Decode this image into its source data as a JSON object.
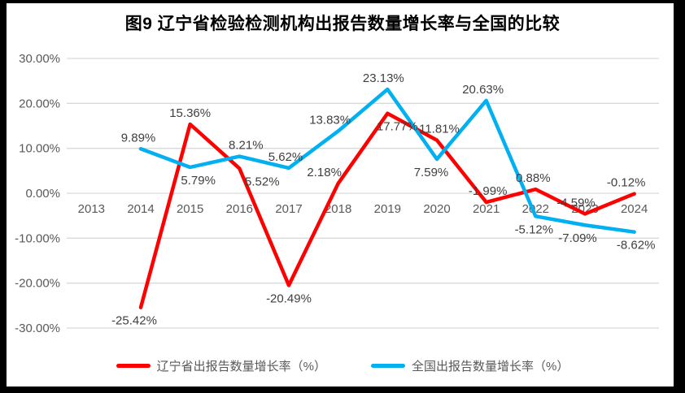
{
  "chart_data": {
    "type": "line",
    "title": "图9  辽宁省检验检测机构出报告数量增长率与全国的比较",
    "categories": [
      "2013",
      "2014",
      "2015",
      "2016",
      "2017",
      "2018",
      "2019",
      "2020",
      "2021",
      "2022",
      "2023",
      "2024"
    ],
    "series": [
      {
        "name": "辽宁省出报告数量增长率（%）",
        "color": "#FF0000",
        "values": [
          null,
          -25.42,
          15.36,
          5.52,
          -20.49,
          2.18,
          17.77,
          11.81,
          -1.99,
          0.88,
          -4.59,
          -0.12
        ],
        "label_side": [
          null,
          "below",
          "above",
          "below",
          "below",
          "above",
          "below",
          "above",
          "above",
          "above",
          "above",
          "above"
        ],
        "label_dx": [
          0,
          -8,
          0,
          28,
          0,
          -17,
          12,
          3,
          2,
          -3,
          -11,
          -10
        ]
      },
      {
        "name": "全国出报告数量增长率（%）",
        "color": "#00B0F0",
        "values": [
          null,
          9.89,
          5.79,
          8.21,
          5.62,
          13.83,
          23.13,
          7.59,
          20.63,
          -5.12,
          -7.09,
          -8.62
        ],
        "label_side": [
          null,
          "above",
          "below",
          "above",
          "above",
          "above",
          "above",
          "below",
          "above",
          "below",
          "below",
          "below"
        ],
        "label_dx": [
          0,
          -3,
          10,
          8,
          -4,
          -10,
          -5,
          -7,
          -4,
          -2,
          -9,
          2
        ]
      }
    ],
    "ylim": [
      -30,
      30
    ],
    "ytick_interval": 10,
    "ytick_labels": [
      "30.00%",
      "20.00%",
      "10.00%",
      "0.00%",
      "-10.00%",
      "-20.00%",
      "-30.00%"
    ],
    "value_format": "0.00%",
    "grid": true,
    "legend_position": "bottom",
    "styles": {
      "gridline_color": "#D9D9D9",
      "tick_label_color": "#595959",
      "data_label_color": "#3F3F3F",
      "title_color": "#000000",
      "background": "#FFFFFF",
      "frame_color": "#000000"
    }
  }
}
